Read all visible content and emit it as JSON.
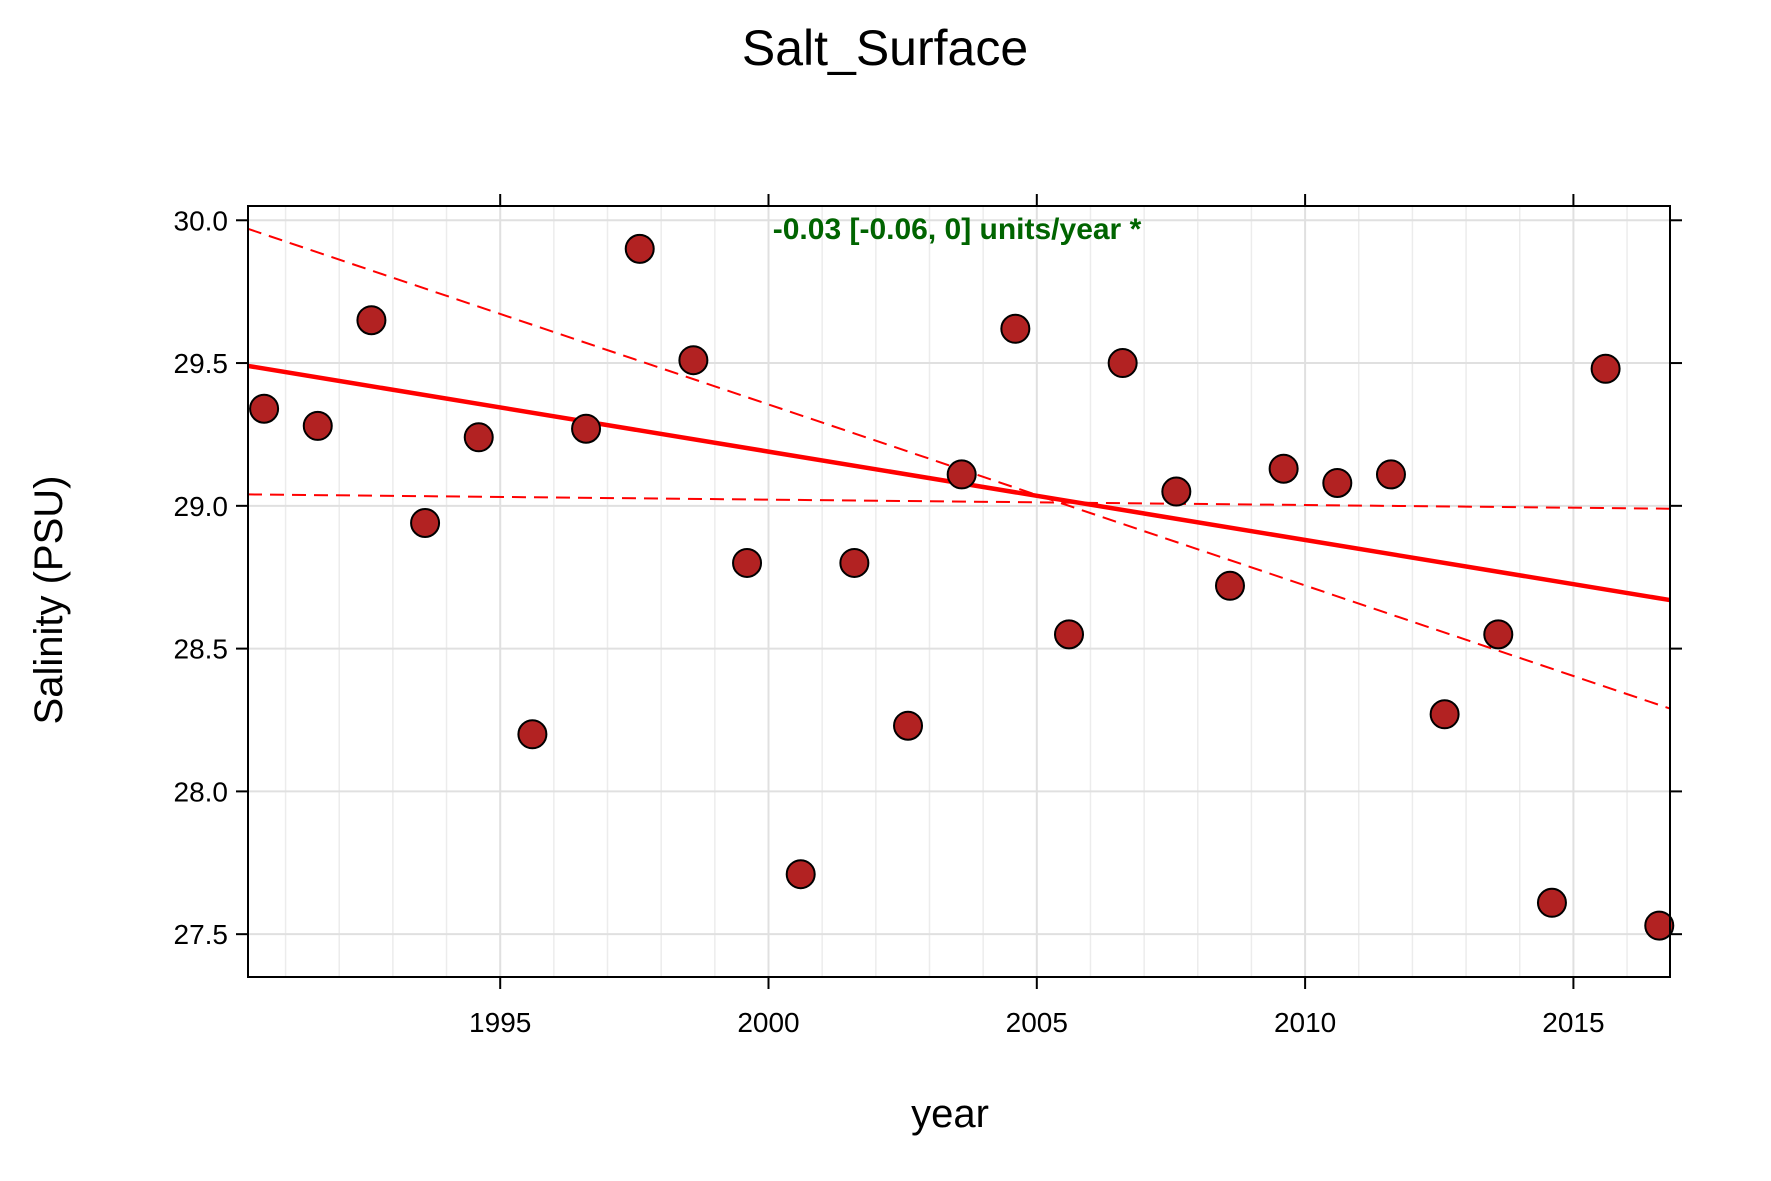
{
  "chart_data": {
    "type": "scatter",
    "title": "Salt_Surface",
    "xlabel": "year",
    "ylabel": "Salinity (PSU)",
    "xlim": [
      1990.3,
      2016.8
    ],
    "ylim": [
      27.35,
      30.05
    ],
    "x_ticks": [
      1995,
      2000,
      2005,
      2010,
      2015
    ],
    "x_tick_labels": [
      "1995",
      "2000",
      "2005",
      "2010",
      "2015"
    ],
    "y_ticks": [
      27.5,
      28.0,
      28.5,
      29.0,
      29.5,
      30.0
    ],
    "y_tick_labels": [
      "27.5",
      "28.0",
      "28.5",
      "29.0",
      "29.5",
      "30.0"
    ],
    "grid": true,
    "annotation": {
      "text": "-0.03 [-0.06, 0] units/year *",
      "color": "#006400"
    },
    "points": {
      "color": "#b22222",
      "x": [
        1990.6,
        1991.6,
        1992.6,
        1993.6,
        1994.6,
        1995.6,
        1996.6,
        1997.6,
        1998.6,
        1999.6,
        2000.6,
        2001.6,
        2002.6,
        2003.6,
        2004.6,
        2005.6,
        2006.6,
        2007.6,
        2008.6,
        2009.6,
        2010.6,
        2011.6,
        2012.6,
        2013.6,
        2014.6,
        2015.6,
        2016.6
      ],
      "y": [
        29.34,
        29.28,
        29.65,
        28.94,
        29.24,
        28.2,
        29.27,
        29.9,
        29.51,
        28.8,
        27.71,
        28.8,
        28.23,
        29.11,
        29.62,
        28.55,
        29.5,
        29.05,
        28.72,
        29.13,
        29.08,
        29.11,
        28.27,
        28.55,
        27.61,
        29.48,
        27.53
      ]
    },
    "trend": {
      "color": "#ff0000",
      "x": [
        1990.3,
        2016.8
      ],
      "y": [
        29.49,
        28.67
      ]
    },
    "ci_lines": [
      {
        "color": "#ff0000",
        "x": [
          1990.3,
          2016.8
        ],
        "y": [
          29.97,
          28.29
        ]
      },
      {
        "color": "#ff0000",
        "x": [
          1990.3,
          2016.8
        ],
        "y": [
          29.04,
          28.99
        ]
      }
    ]
  }
}
